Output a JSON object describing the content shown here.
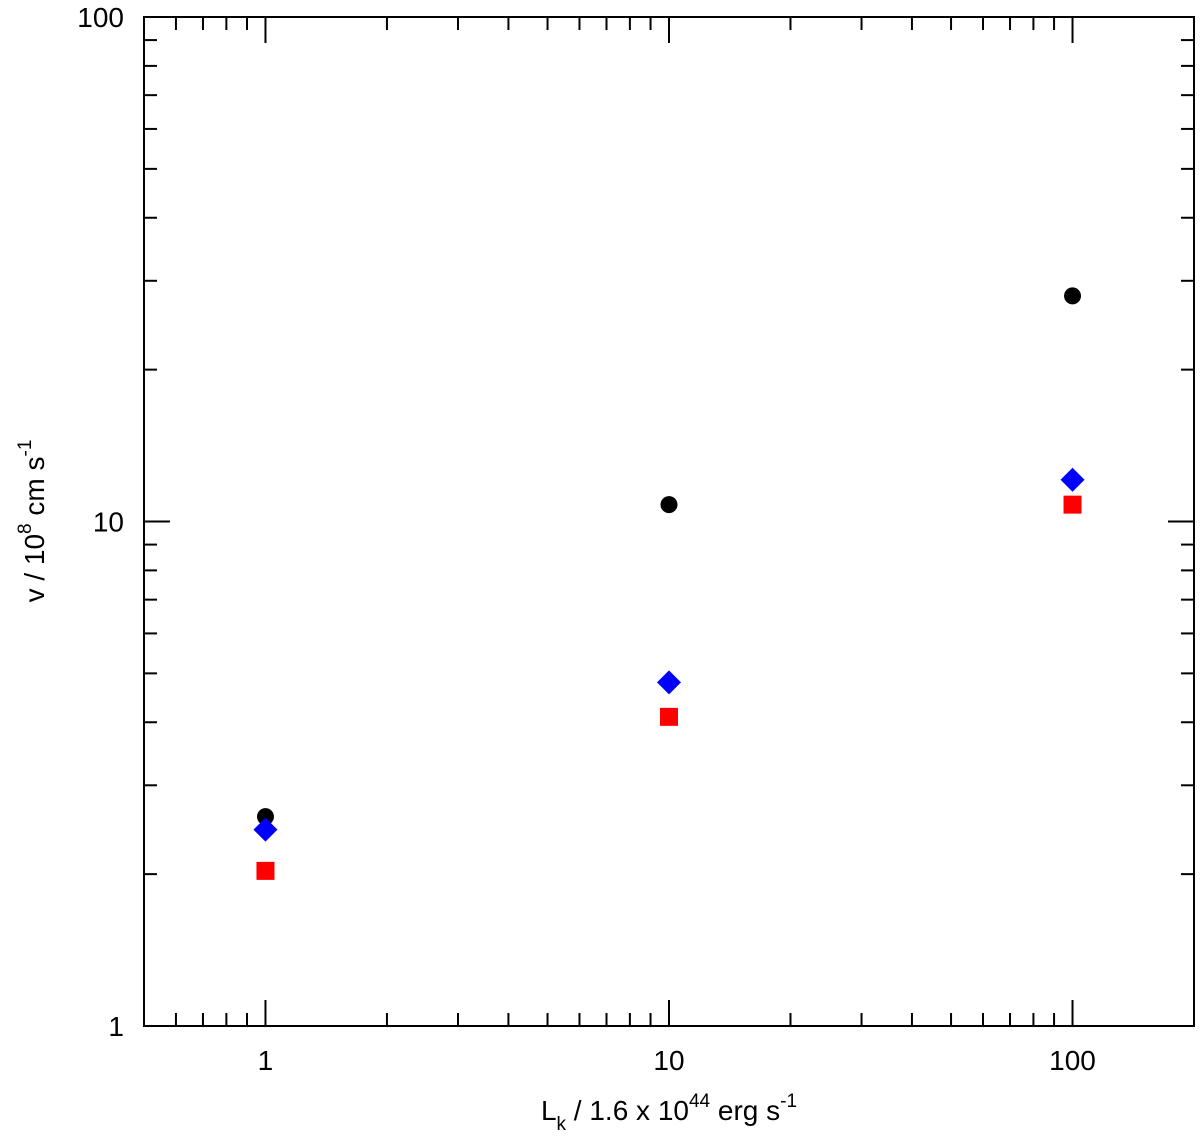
{
  "chart_data": {
    "type": "scatter",
    "x_scale": "log",
    "y_scale": "log",
    "xlim": [
      0.5,
      200
    ],
    "ylim": [
      1,
      100
    ],
    "grid": false,
    "x_ticks": [
      "1",
      "10",
      "100"
    ],
    "y_ticks": [
      "1",
      "10",
      "100"
    ],
    "xlabel": {
      "base": "L",
      "sub": "k",
      "mid": " / 1.6 x 10",
      "sup": "44",
      "tail": " erg s",
      "sup2": "-1"
    },
    "ylabel": {
      "base": "v / 10",
      "sup": "8",
      "mid": " cm s",
      "sup2": "-1"
    },
    "series": [
      {
        "marker": "circle",
        "color": "#000000",
        "x": [
          1,
          10,
          100
        ],
        "y": [
          2.6,
          10.8,
          28.0
        ]
      },
      {
        "marker": "diamond",
        "color": "#0000ff",
        "x": [
          1,
          10,
          100
        ],
        "y": [
          2.45,
          4.8,
          12.1
        ]
      },
      {
        "marker": "square",
        "color": "#ff0000",
        "x": [
          1,
          10,
          100
        ],
        "y": [
          2.03,
          4.1,
          10.8
        ]
      }
    ]
  }
}
